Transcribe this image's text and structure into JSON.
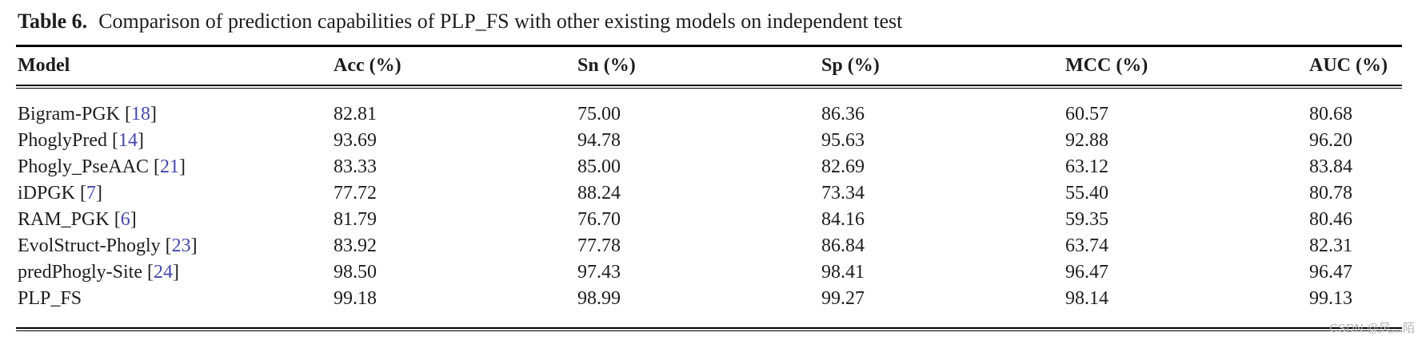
{
  "caption": {
    "label": "Table 6.",
    "text": "Comparison of prediction capabilities of PLP_FS with other existing models on independent test"
  },
  "table": {
    "columns": [
      "Model",
      "Acc (%)",
      "Sn (%)",
      "Sp (%)",
      "MCC (%)",
      "AUC (%)"
    ],
    "rows": [
      {
        "model": "Bigram-PGK",
        "ref": "18",
        "values": [
          "82.81",
          "75.00",
          "86.36",
          "60.57",
          "80.68"
        ]
      },
      {
        "model": "PhoglyPred",
        "ref": "14",
        "values": [
          "93.69",
          "94.78",
          "95.63",
          "92.88",
          "96.20"
        ]
      },
      {
        "model": "Phogly_PseAAC",
        "ref": "21",
        "values": [
          "83.33",
          "85.00",
          "82.69",
          "63.12",
          "83.84"
        ]
      },
      {
        "model": "iDPGK",
        "ref": "7",
        "values": [
          "77.72",
          "88.24",
          "73.34",
          "55.40",
          "80.78"
        ]
      },
      {
        "model": "RAM_PGK",
        "ref": "6",
        "values": [
          "81.79",
          "76.70",
          "84.16",
          "59.35",
          "80.46"
        ]
      },
      {
        "model": "EvolStruct-Phogly",
        "ref": "23",
        "values": [
          "83.92",
          "77.78",
          "86.84",
          "63.74",
          "82.31"
        ]
      },
      {
        "model": "predPhogly-Site",
        "ref": "24",
        "values": [
          "98.50",
          "97.43",
          "98.41",
          "96.47",
          "96.47"
        ]
      },
      {
        "model": "PLP_FS",
        "ref": null,
        "values": [
          "99.18",
          "98.99",
          "99.27",
          "98.14",
          "99.13"
        ]
      }
    ]
  },
  "watermark": "CSDN @风灬陌",
  "colors": {
    "text": "#1d1d1d",
    "citation_link": "#4447a9",
    "watermark": "#b5b5b5",
    "rule": "#000000"
  }
}
